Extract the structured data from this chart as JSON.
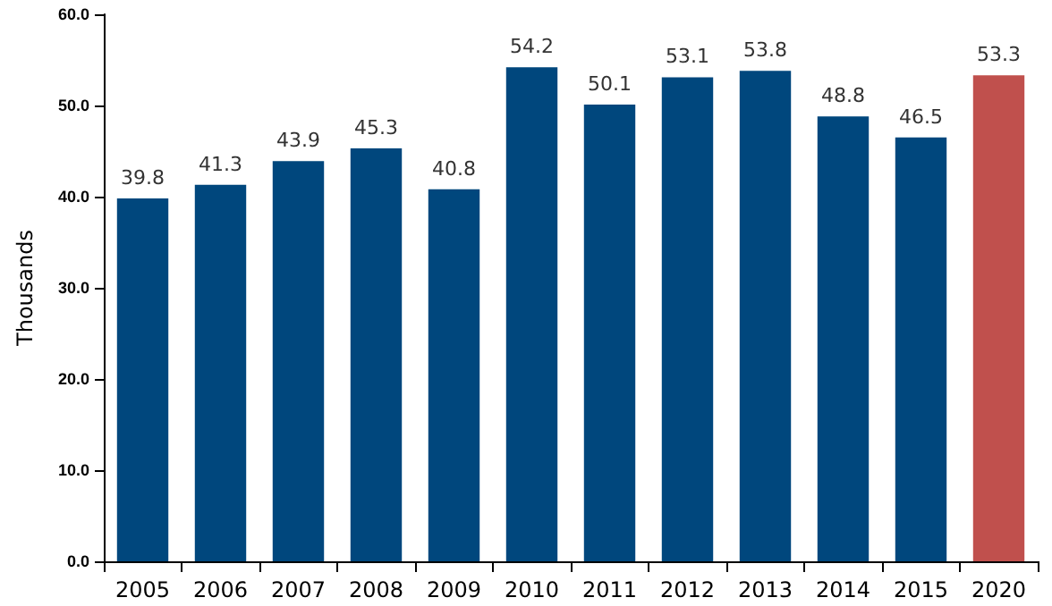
{
  "chart_data": {
    "type": "bar",
    "ylabel": "Thousands",
    "categories": [
      "2005",
      "2006",
      "2007",
      "2008",
      "2009",
      "2010",
      "2011",
      "2012",
      "2013",
      "2014",
      "2015",
      "2020"
    ],
    "values": [
      39.8,
      41.3,
      43.9,
      45.3,
      40.8,
      54.2,
      50.1,
      53.1,
      53.8,
      48.8,
      46.5,
      53.3
    ],
    "colors": [
      "#00477d",
      "#00477d",
      "#00477d",
      "#00477d",
      "#00477d",
      "#00477d",
      "#00477d",
      "#00477d",
      "#00477d",
      "#00477d",
      "#00477d",
      "#c0504d"
    ],
    "ylim": [
      0,
      60
    ],
    "yticks": [
      {
        "value": 0,
        "label": "0.0"
      },
      {
        "value": 10,
        "label": "10.0"
      },
      {
        "value": 20,
        "label": "20.0"
      },
      {
        "value": 30,
        "label": "30.0"
      },
      {
        "value": 40,
        "label": "40.0"
      },
      {
        "value": 50,
        "label": "50.0"
      },
      {
        "value": 60,
        "label": "60.0"
      }
    ],
    "grid": false,
    "data_labels": true
  }
}
